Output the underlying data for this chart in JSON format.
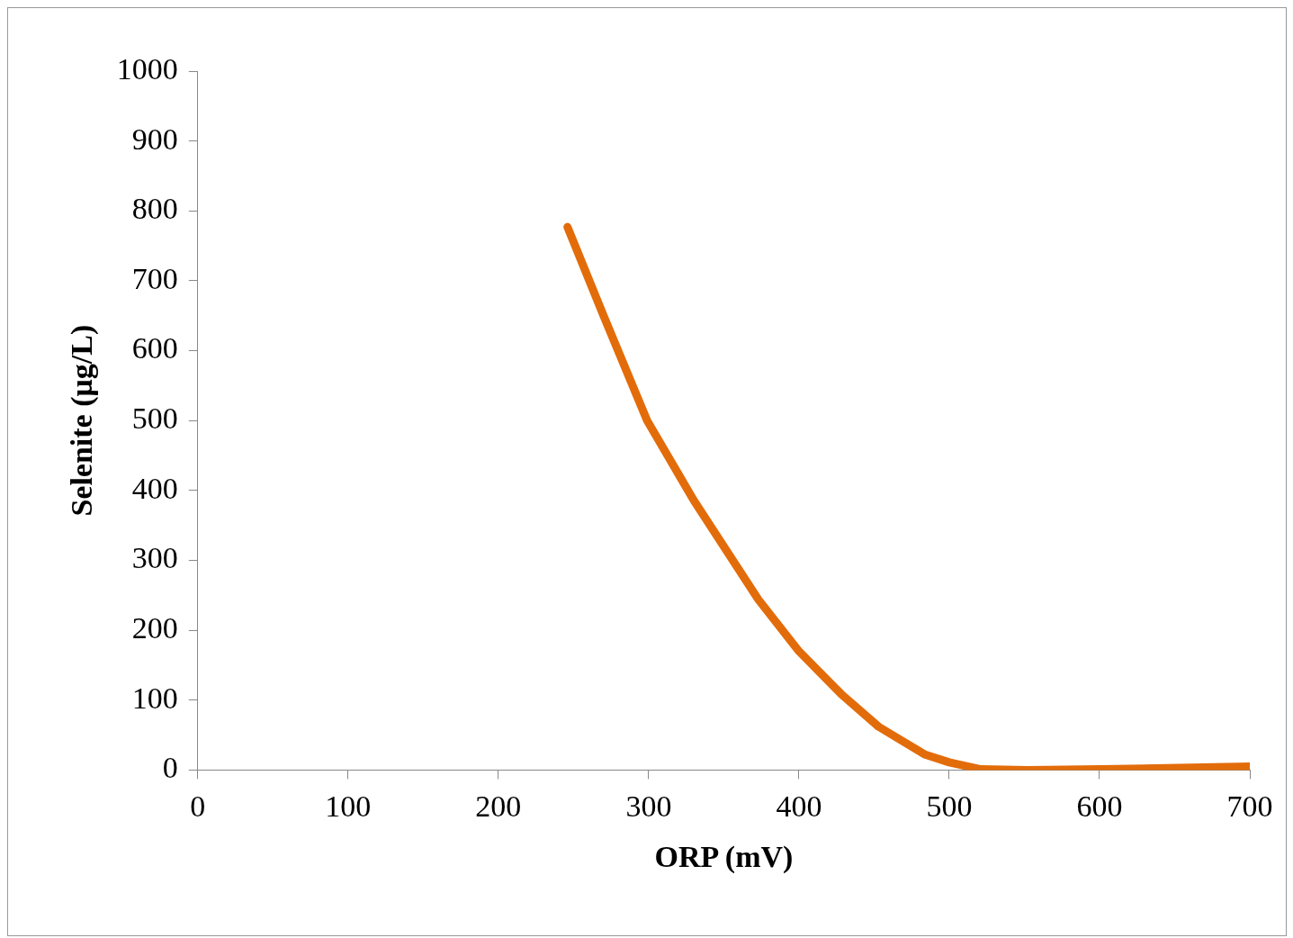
{
  "chart_data": {
    "type": "line",
    "xlabel": "ORP (mV)",
    "ylabel": "Selenite (μg/L)",
    "x": [
      246,
      270,
      299,
      330,
      373,
      400,
      428,
      453,
      484,
      500,
      521,
      552,
      601,
      700
    ],
    "series": [
      {
        "color": "#e36c0a",
        "values": [
          777,
          650,
          500,
          386,
          244,
          170,
          109,
          62,
          22,
          11,
          1,
          0,
          1,
          5
        ]
      }
    ],
    "xlim": [
      0,
      700
    ],
    "xticks": [
      0,
      100,
      200,
      300,
      400,
      500,
      600,
      700
    ],
    "ylim": [
      0,
      1000
    ],
    "yticks": [
      0,
      100,
      200,
      300,
      400,
      500,
      600,
      700,
      800,
      900,
      1000
    ],
    "grid": false,
    "legend": false,
    "marker": "none",
    "line_style": "solid"
  }
}
